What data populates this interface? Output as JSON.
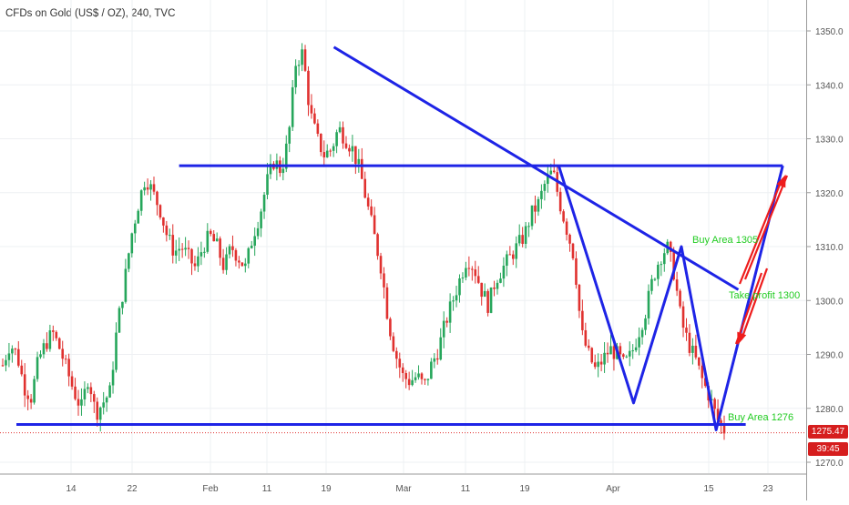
{
  "title": "CFDs on Gold (US$ / OZ), 240, TVC",
  "price_tag": "1275.47",
  "countdown_tag": "39:45",
  "colors": {
    "up": "#26a65b",
    "down": "#e0312f",
    "drawing": "#1e24e6",
    "label": "#22cc22",
    "arrow": "#ee1c1c",
    "price_tag": "#d61e1e"
  },
  "chart_data": {
    "type": "candlestick",
    "ylim": [
      1267,
      1352
    ],
    "y_ticks": [
      1270,
      1280,
      1290,
      1300,
      1310,
      1320,
      1330,
      1340,
      1350
    ],
    "x_ticks": [
      "14",
      "22",
      "Feb",
      "11",
      "19",
      "Mar",
      "11",
      "19",
      "Apr",
      "15",
      "23"
    ],
    "close_approx": [
      1288,
      1292,
      1290,
      1284,
      1282,
      1289,
      1292,
      1294,
      1291,
      1287,
      1283,
      1280,
      1286,
      1279,
      1281,
      1283,
      1295,
      1303,
      1312,
      1318,
      1323,
      1320,
      1317,
      1312,
      1309,
      1310,
      1308,
      1306,
      1310,
      1312,
      1310,
      1306,
      1310,
      1308,
      1306,
      1312,
      1316,
      1322,
      1326,
      1324,
      1330,
      1344,
      1346,
      1335,
      1330,
      1327,
      1328,
      1332,
      1330,
      1328,
      1324,
      1318,
      1312,
      1306,
      1296,
      1290,
      1286,
      1285,
      1286,
      1284,
      1288,
      1291,
      1296,
      1300,
      1304,
      1308,
      1306,
      1302,
      1299,
      1304,
      1306,
      1308,
      1310,
      1312,
      1316,
      1318,
      1322,
      1324,
      1318,
      1313,
      1308,
      1294,
      1290,
      1287,
      1289,
      1291,
      1290,
      1288,
      1290,
      1294,
      1298,
      1304,
      1308,
      1310,
      1305,
      1296,
      1292,
      1289,
      1285,
      1282,
      1278,
      1276
    ],
    "drawings": [
      {
        "type": "line",
        "label": "resistance",
        "points": [
          [
            "Jan 28",
            1325
          ],
          [
            "Apr 25",
            1325
          ]
        ]
      },
      {
        "type": "line",
        "label": "support",
        "points": [
          [
            "Jan 8",
            1277
          ],
          [
            "Apr 20",
            1277
          ]
        ]
      },
      {
        "type": "line",
        "label": "trendline",
        "points": [
          [
            "Feb 20",
            1347
          ],
          [
            "Apr 19",
            1302
          ]
        ]
      },
      {
        "type": "zigzag",
        "points": [
          [
            "Mar 24",
            1325
          ],
          [
            "Apr 4",
            1281
          ],
          [
            "Apr 11",
            1310
          ],
          [
            "Apr 16",
            1276
          ],
          [
            "Apr 25",
            1325
          ]
        ]
      }
    ],
    "annotations": [
      {
        "text": "Buy Area 1305",
        "at": [
          "Apr 11",
          1310
        ]
      },
      {
        "text": "Take profit 1300",
        "at": [
          "Apr 16",
          1300
        ]
      },
      {
        "text": "Buy Area 1276",
        "at": [
          "Apr 16",
          1279
        ]
      }
    ]
  }
}
